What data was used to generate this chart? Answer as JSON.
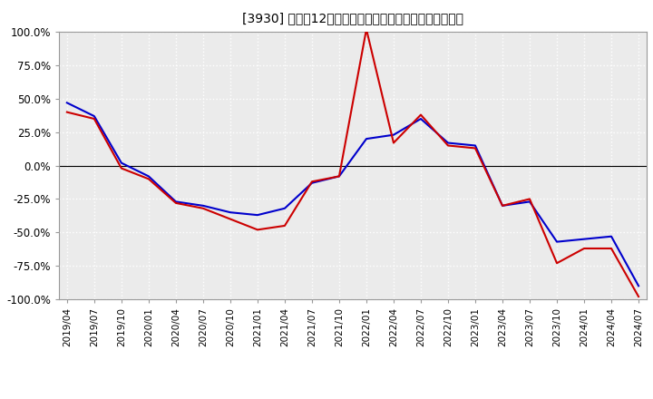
{
  "title": "[3930］ 利益の12か月移動合計の対前年同期増減率の推移",
  "title_bracket_num": "[3930]",
  "title_rest": " 利益の12か月移動合計の対前年同期増減率の推移",
  "x_labels": [
    "2019/04",
    "2019/07",
    "2019/10",
    "2020/01",
    "2020/04",
    "2020/07",
    "2020/10",
    "2021/01",
    "2021/04",
    "2021/07",
    "2021/10",
    "2022/01",
    "2022/04",
    "2022/07",
    "2022/10",
    "2023/01",
    "2023/04",
    "2023/07",
    "2023/10",
    "2024/01",
    "2024/04",
    "2024/07"
  ],
  "keijo_rieki": [
    0.47,
    0.37,
    0.02,
    -0.08,
    -0.27,
    -0.3,
    -0.35,
    -0.37,
    -0.32,
    -0.13,
    -0.08,
    0.2,
    0.23,
    0.35,
    0.17,
    0.15,
    -0.3,
    -0.27,
    -0.57,
    -0.55,
    -0.53,
    -0.9
  ],
  "touki_junrieki": [
    0.4,
    0.35,
    -0.02,
    -0.1,
    -0.28,
    -0.32,
    -0.4,
    -0.48,
    -0.45,
    -0.12,
    -0.08,
    1.02,
    0.17,
    0.38,
    0.15,
    0.13,
    -0.3,
    -0.25,
    -0.73,
    -0.62,
    -0.62,
    -0.98
  ],
  "keijo_color": "#0000cc",
  "touki_color": "#cc0000",
  "ylim": [
    -1.0,
    1.0
  ],
  "yticks": [
    -1.0,
    -0.75,
    -0.5,
    -0.25,
    0.0,
    0.25,
    0.5,
    0.75,
    1.0
  ],
  "ytick_labels": [
    "-100.0%",
    "-75.0%",
    "-50.0%",
    "-25.0%",
    "0.0%",
    "25.0%",
    "50.0%",
    "75.0%",
    "100.0%"
  ],
  "bg_color": "#ffffff",
  "plot_bg_color": "#ebebeb",
  "grid_color": "#ffffff",
  "grid_linestyle": "dotted",
  "line_width": 1.5
}
